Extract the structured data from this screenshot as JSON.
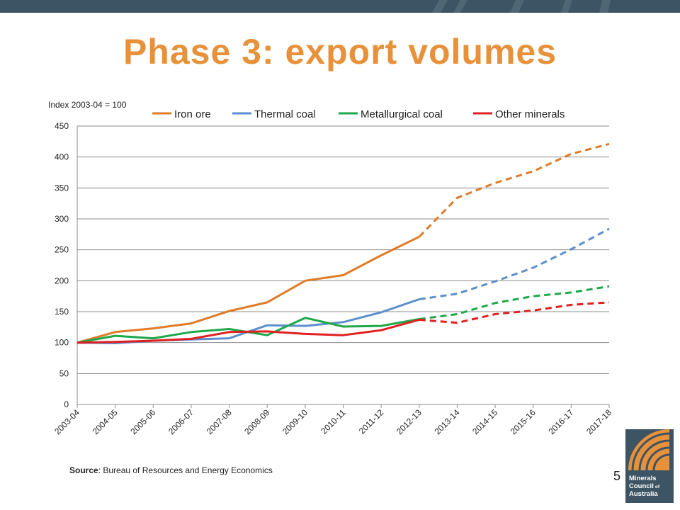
{
  "slide": {
    "title": "Phase 3: export volumes",
    "source_label": "Source",
    "source_text": ": Bureau  of Resources and Energy Economics",
    "page_number": "5"
  },
  "logo": {
    "line1": "Minerals",
    "line2": "Council",
    "line2_small": "of",
    "line3": "Australia",
    "colors": {
      "orange": "#e8913b",
      "slate": "#3d5464"
    }
  },
  "theme": {
    "banner": "#3d5464",
    "title": "#e8913b"
  },
  "chart_data": {
    "type": "line",
    "title": "",
    "ylabel": "Index 2003-04 = 100",
    "xlabel": "",
    "ylim": [
      0,
      450
    ],
    "yticks": [
      0,
      50,
      100,
      150,
      200,
      250,
      300,
      350,
      400,
      450
    ],
    "grid": true,
    "legend_position": "top",
    "categories": [
      "2003-04",
      "2004-05",
      "2005-06",
      "2006-07",
      "2007-08",
      "2008-09",
      "2009-10",
      "2010-11",
      "2011-12",
      "2012-13",
      "2013-14",
      "2014-15",
      "2015-16",
      "2016-17",
      "2017-18"
    ],
    "forecast_from": "2012-13",
    "series": [
      {
        "name": "Iron ore",
        "color": "#e07b28",
        "values": [
          100,
          117,
          123,
          131,
          151,
          165,
          200,
          209,
          241,
          271,
          334,
          358,
          377,
          405,
          421
        ]
      },
      {
        "name": "Thermal coal",
        "color": "#5b8fce",
        "values": [
          100,
          99,
          103,
          105,
          107,
          128,
          127,
          133,
          149,
          170,
          179,
          199,
          221,
          251,
          284
        ]
      },
      {
        "name": "Metallurgical coal",
        "color": "#1ea84a",
        "values": [
          100,
          111,
          107,
          117,
          122,
          112,
          140,
          126,
          127,
          138,
          146,
          164,
          175,
          181,
          191
        ]
      },
      {
        "name": "Other minerals",
        "color": "#e02020",
        "values": [
          100,
          101,
          103,
          106,
          117,
          118,
          114,
          112,
          120,
          137,
          132,
          146,
          152,
          161,
          165
        ]
      }
    ]
  }
}
